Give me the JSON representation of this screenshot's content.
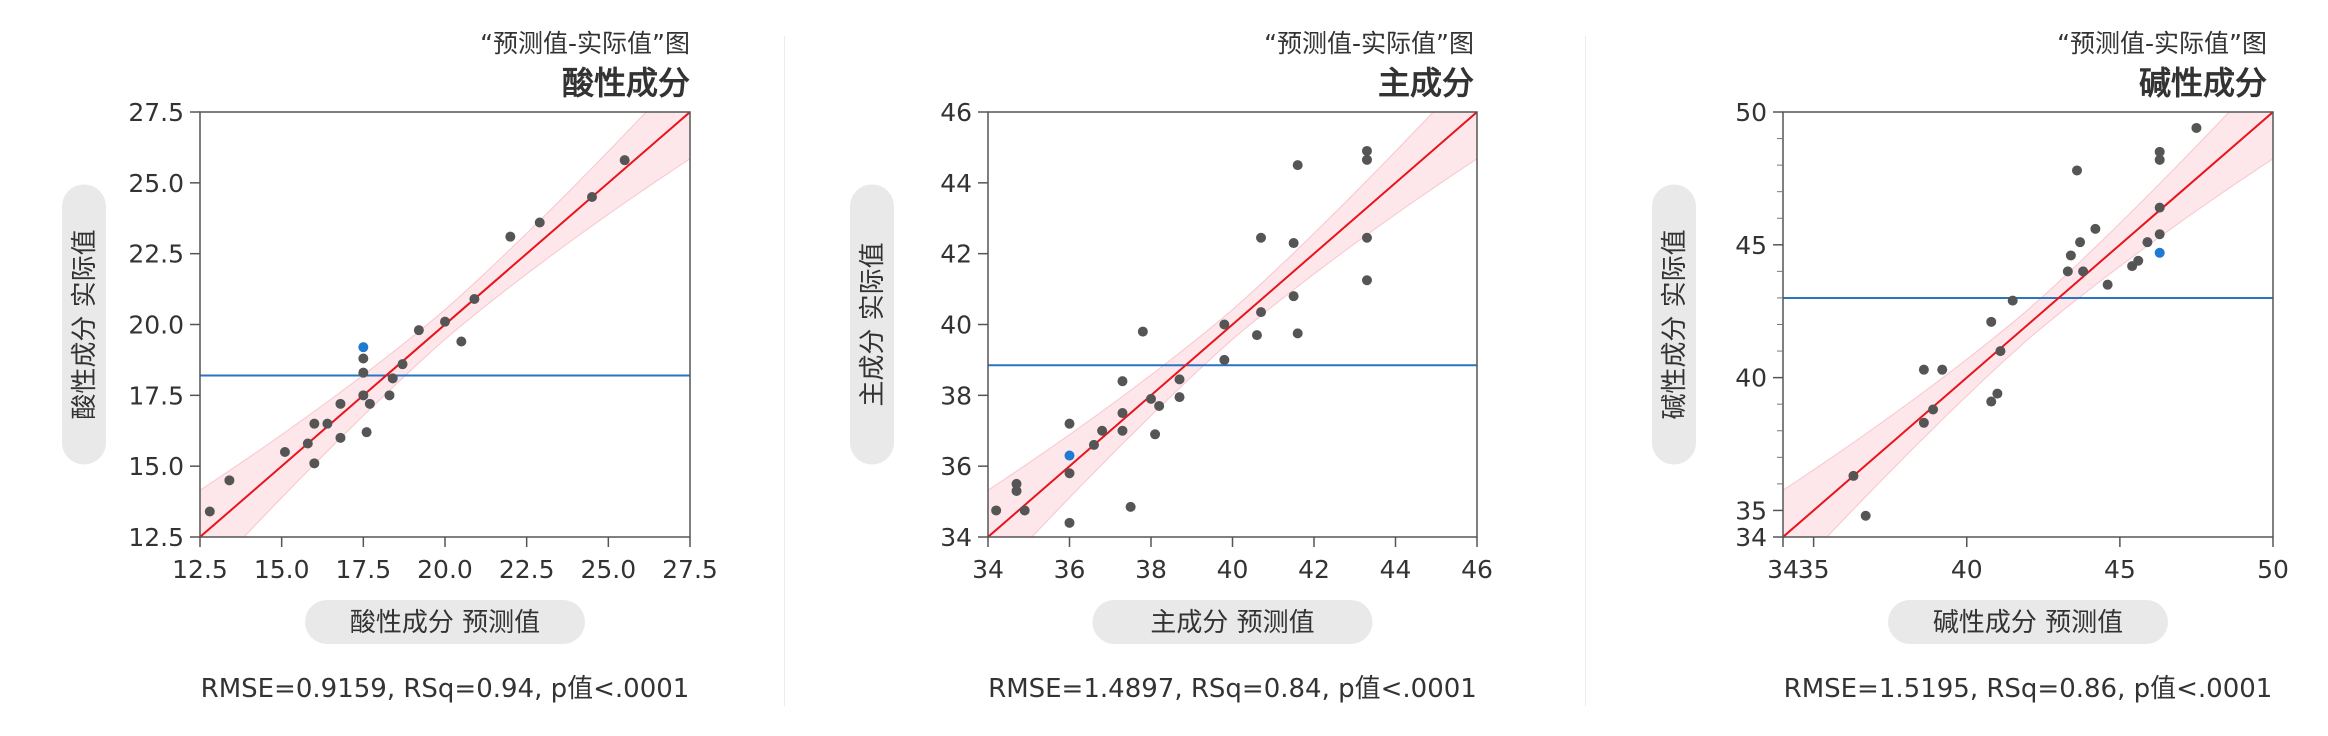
{
  "charts": [
    {
      "subtitle": "“预测值-实际值”图",
      "title": "酸性成分",
      "xlabel": "酸性成分 预测值",
      "ylabel": "酸性成分 实际值",
      "stats": "RMSE=0.9159, RSq=0.94, p值<.0001"
    },
    {
      "subtitle": "“预测值-实际值”图",
      "title": "主成分",
      "xlabel": "主成分 预测值",
      "ylabel": "主成分 实际值",
      "stats": "RMSE=1.4897, RSq=0.84, p值<.0001"
    },
    {
      "subtitle": "“预测值-实际值”图",
      "title": "碱性成分",
      "xlabel": "碱性成分 预测值",
      "ylabel": "碱性成分 实际值",
      "stats": "RMSE=1.5195, RSq=0.86, p值<.0001"
    }
  ],
  "colors": {
    "point": "#555555",
    "highlight_point": "#1f7bd1",
    "fit_line": "#e8141c",
    "mean_line": "#2a74c4",
    "confidence_band": "#fbd3da",
    "label_pill": "#e9e9e9"
  },
  "chart_data": [
    {
      "type": "scatter",
      "title": "酸性成分",
      "subtitle": "“预测值-实际值”图",
      "xlabel": "酸性成分 预测值",
      "ylabel": "酸性成分 实际值",
      "xlim": [
        12.5,
        27.5
      ],
      "ylim": [
        12.5,
        27.5
      ],
      "xticks": [
        "12.5",
        "15.0",
        "17.5",
        "20.0",
        "22.5",
        "25.0",
        "27.5"
      ],
      "yticks": [
        "12.5",
        "15.0",
        "17.5",
        "20.0",
        "22.5",
        "25.0",
        "27.5"
      ],
      "mean_y": 18.2,
      "grid": false,
      "points": [
        [
          12.8,
          13.4
        ],
        [
          13.4,
          14.5
        ],
        [
          15.1,
          15.5
        ],
        [
          15.8,
          15.8
        ],
        [
          16.0,
          16.5
        ],
        [
          16.0,
          15.1
        ],
        [
          16.4,
          16.5
        ],
        [
          16.8,
          17.2
        ],
        [
          16.8,
          16.0
        ],
        [
          17.5,
          17.5
        ],
        [
          17.5,
          18.3
        ],
        [
          17.5,
          18.8
        ],
        [
          17.6,
          16.2
        ],
        [
          17.7,
          17.2
        ],
        [
          18.3,
          17.5
        ],
        [
          18.4,
          18.1
        ],
        [
          18.7,
          18.6
        ],
        [
          19.2,
          19.8
        ],
        [
          20.0,
          20.1
        ],
        [
          20.5,
          19.4
        ],
        [
          20.9,
          20.9
        ],
        [
          22.0,
          23.1
        ],
        [
          22.9,
          23.6
        ],
        [
          24.5,
          24.5
        ],
        [
          25.5,
          25.8
        ]
      ],
      "highlight_point": [
        17.5,
        19.2
      ],
      "stats": "RMSE=0.9159, RSq=0.94, p值<.0001"
    },
    {
      "type": "scatter",
      "title": "主成分",
      "subtitle": "“预测值-实际值”图",
      "xlabel": "主成分 预测值",
      "ylabel": "主成分 实际值",
      "xlim": [
        34,
        46
      ],
      "ylim": [
        34,
        46
      ],
      "xticks": [
        "34",
        "36",
        "38",
        "40",
        "42",
        "44",
        "46"
      ],
      "yticks": [
        "34",
        "36",
        "38",
        "40",
        "42",
        "44",
        "46"
      ],
      "mean_y": 38.85,
      "grid": false,
      "points": [
        [
          34.2,
          34.75
        ],
        [
          34.7,
          35.5
        ],
        [
          34.7,
          35.3
        ],
        [
          34.9,
          34.75
        ],
        [
          36.0,
          37.2
        ],
        [
          36.0,
          35.8
        ],
        [
          36.0,
          34.4
        ],
        [
          36.6,
          36.6
        ],
        [
          36.8,
          37.0
        ],
        [
          37.3,
          38.4
        ],
        [
          37.3,
          37.5
        ],
        [
          37.3,
          37.0
        ],
        [
          37.5,
          34.85
        ],
        [
          37.8,
          39.8
        ],
        [
          38.0,
          37.9
        ],
        [
          38.1,
          36.9
        ],
        [
          38.2,
          37.7
        ],
        [
          38.7,
          38.45
        ],
        [
          38.7,
          37.95
        ],
        [
          39.8,
          40.0
        ],
        [
          39.8,
          39.0
        ],
        [
          40.6,
          39.7
        ],
        [
          40.7,
          40.35
        ],
        [
          40.7,
          42.45
        ],
        [
          41.5,
          42.3
        ],
        [
          41.5,
          40.8
        ],
        [
          41.6,
          44.5
        ],
        [
          41.6,
          39.75
        ],
        [
          43.3,
          44.9
        ],
        [
          43.3,
          44.65
        ],
        [
          43.3,
          42.45
        ],
        [
          43.3,
          41.25
        ]
      ],
      "highlight_point": [
        36.0,
        36.3
      ],
      "stats": "RMSE=1.4897, RSq=0.84, p值<.0001"
    },
    {
      "type": "scatter",
      "title": "碱性成分",
      "subtitle": "“预测值-实际值”图",
      "xlabel": "碱性成分 预测值",
      "ylabel": "碱性成分 实际值",
      "xlim": [
        34,
        50
      ],
      "ylim": [
        34,
        50
      ],
      "xticks": [
        "34",
        "35",
        "40",
        "45",
        "50"
      ],
      "yticks": [
        "34",
        "35",
        "40",
        "45",
        "50"
      ],
      "mean_y": 43.0,
      "grid": false,
      "points": [
        [
          36.3,
          36.3
        ],
        [
          36.7,
          34.8
        ],
        [
          38.6,
          38.3
        ],
        [
          38.6,
          40.3
        ],
        [
          38.9,
          38.8
        ],
        [
          39.2,
          40.3
        ],
        [
          40.8,
          42.1
        ],
        [
          40.8,
          39.1
        ],
        [
          41.0,
          39.4
        ],
        [
          41.1,
          41.0
        ],
        [
          41.5,
          42.9
        ],
        [
          43.3,
          44.0
        ],
        [
          43.4,
          44.6
        ],
        [
          43.6,
          47.8
        ],
        [
          43.7,
          45.1
        ],
        [
          43.8,
          44.0
        ],
        [
          44.2,
          45.6
        ],
        [
          44.6,
          43.5
        ],
        [
          45.4,
          44.2
        ],
        [
          45.6,
          44.4
        ],
        [
          45.9,
          45.1
        ],
        [
          46.3,
          45.4
        ],
        [
          46.3,
          46.4
        ],
        [
          46.3,
          48.2
        ],
        [
          46.3,
          48.5
        ],
        [
          47.5,
          49.4
        ]
      ],
      "highlight_point": [
        46.3,
        44.7
      ],
      "stats": "RMSE=1.5195, RSq=0.86, p值<.0001"
    }
  ]
}
